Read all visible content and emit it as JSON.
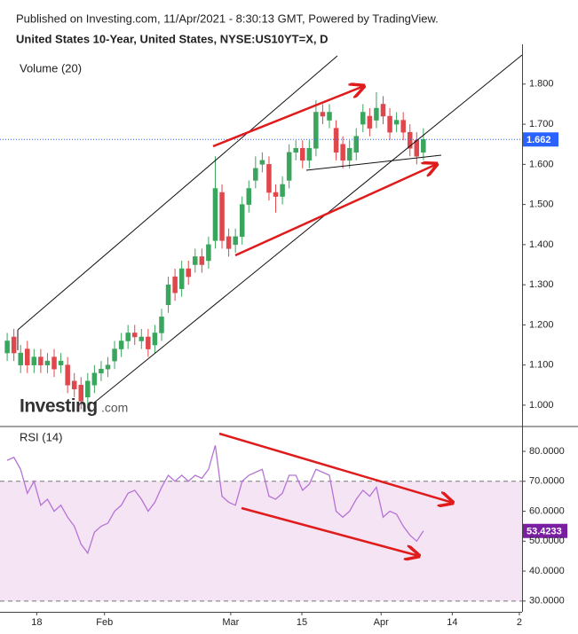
{
  "chart_data": [
    {
      "type": "candlestick",
      "subtitle": "Published on Investing.com, 11/Apr/2021 - 8:30:13 GMT, Powered by TradingView.",
      "title": "United States 10-Year, United States, NYSE:US10YT=X, D",
      "label": "Volume (20)",
      "watermark": "Investing",
      "watermark_suffix": ".com",
      "up_color": "#3aa55c",
      "down_color": "#e0474c",
      "last_color": "#2962ff",
      "xlim": [
        -1.07,
        76.7
      ],
      "ylim": [
        0.949,
        1.888
      ],
      "yticks": [
        {
          "value": 1.0,
          "label": "1.000"
        },
        {
          "value": 1.1,
          "label": "1.100"
        },
        {
          "value": 1.2,
          "label": "1.200"
        },
        {
          "value": 1.3,
          "label": "1.300"
        },
        {
          "value": 1.4,
          "label": "1.400"
        },
        {
          "value": 1.5,
          "label": "1.500"
        },
        {
          "value": 1.6,
          "label": "1.600"
        },
        {
          "value": 1.7,
          "label": "1.700"
        },
        {
          "value": 1.8,
          "label": "1.800"
        }
      ],
      "open": [
        1.13,
        1.17,
        1.1,
        1.14,
        1.1,
        1.12,
        1.1,
        1.12,
        1.1,
        1.1,
        1.06,
        1.05,
        1.02,
        1.05,
        1.08,
        1.09,
        1.11,
        1.14,
        1.16,
        1.18,
        1.16,
        1.17,
        1.15,
        1.18,
        1.25,
        1.32,
        1.29,
        1.34,
        1.35,
        1.37,
        1.36,
        1.41,
        1.53,
        1.42,
        1.4,
        1.42,
        1.5,
        1.56,
        1.6,
        1.6,
        1.53,
        1.52,
        1.56,
        1.63,
        1.64,
        1.61,
        1.64,
        1.73,
        1.71,
        1.69,
        1.65,
        1.61,
        1.63,
        1.7,
        1.72,
        1.71,
        1.75,
        1.72,
        1.7,
        1.71,
        1.68,
        1.66,
        1.63
      ],
      "high": [
        1.18,
        1.19,
        1.15,
        1.16,
        1.14,
        1.14,
        1.13,
        1.14,
        1.13,
        1.12,
        1.08,
        1.07,
        1.08,
        1.1,
        1.11,
        1.12,
        1.16,
        1.18,
        1.2,
        1.2,
        1.19,
        1.19,
        1.2,
        1.24,
        1.32,
        1.34,
        1.36,
        1.36,
        1.39,
        1.39,
        1.42,
        1.62,
        1.55,
        1.44,
        1.44,
        1.52,
        1.56,
        1.62,
        1.63,
        1.62,
        1.55,
        1.57,
        1.65,
        1.66,
        1.66,
        1.66,
        1.76,
        1.75,
        1.75,
        1.71,
        1.67,
        1.66,
        1.69,
        1.75,
        1.74,
        1.78,
        1.77,
        1.74,
        1.73,
        1.73,
        1.7,
        1.68,
        1.69
      ],
      "low": [
        1.11,
        1.11,
        1.08,
        1.08,
        1.08,
        1.08,
        1.08,
        1.07,
        1.08,
        1.03,
        1.02,
        0.99,
        1.0,
        1.03,
        1.06,
        1.07,
        1.09,
        1.12,
        1.14,
        1.15,
        1.14,
        1.12,
        1.13,
        1.16,
        1.23,
        1.26,
        1.27,
        1.3,
        1.33,
        1.33,
        1.34,
        1.39,
        1.39,
        1.37,
        1.38,
        1.4,
        1.48,
        1.54,
        1.58,
        1.51,
        1.48,
        1.5,
        1.54,
        1.61,
        1.59,
        1.59,
        1.62,
        1.7,
        1.69,
        1.61,
        1.59,
        1.59,
        1.61,
        1.68,
        1.67,
        1.69,
        1.7,
        1.66,
        1.68,
        1.66,
        1.62,
        1.6,
        1.61
      ],
      "close": [
        1.16,
        1.13,
        1.13,
        1.1,
        1.12,
        1.1,
        1.11,
        1.09,
        1.11,
        1.05,
        1.04,
        1.01,
        1.06,
        1.08,
        1.09,
        1.1,
        1.14,
        1.16,
        1.18,
        1.17,
        1.17,
        1.14,
        1.18,
        1.22,
        1.3,
        1.28,
        1.34,
        1.32,
        1.37,
        1.35,
        1.4,
        1.54,
        1.41,
        1.39,
        1.42,
        1.5,
        1.54,
        1.59,
        1.61,
        1.53,
        1.52,
        1.55,
        1.63,
        1.64,
        1.61,
        1.64,
        1.73,
        1.72,
        1.73,
        1.63,
        1.61,
        1.64,
        1.67,
        1.73,
        1.69,
        1.74,
        1.72,
        1.68,
        1.71,
        1.68,
        1.64,
        1.62,
        1.662
      ]
    },
    {
      "type": "line",
      "title": "RSI (14)",
      "color": "#b673d6",
      "band_color": "#f4e4f4",
      "last_color": "#7b1fa2",
      "band": [
        30,
        70
      ],
      "xlim": [
        -1.07,
        76.7
      ],
      "ylim": [
        26.4,
        87.7
      ],
      "yticks": [
        {
          "value": 30,
          "label": "30.0000"
        },
        {
          "value": 40,
          "label": "40.0000"
        },
        {
          "value": 50,
          "label": "50.0000"
        },
        {
          "value": 60,
          "label": "60.0000"
        },
        {
          "value": 70,
          "label": "70.0000"
        },
        {
          "value": 80,
          "label": "80.0000"
        }
      ],
      "xticks": [
        {
          "value": 4.4,
          "label": "18"
        },
        {
          "value": 14.5,
          "label": "Feb"
        },
        {
          "value": 33.3,
          "label": "Mar"
        },
        {
          "value": 43.9,
          "label": "15"
        },
        {
          "value": 55.7,
          "label": "Apr"
        },
        {
          "value": 66.3,
          "label": "14"
        },
        {
          "value": 76.3,
          "label": "2"
        }
      ],
      "values": [
        77,
        78,
        74,
        66,
        70,
        62,
        64,
        60,
        62,
        58,
        55,
        49,
        46,
        53,
        55,
        56,
        60,
        62,
        66,
        67,
        64,
        60,
        63,
        68,
        72,
        70,
        72,
        70,
        72,
        71,
        74,
        82,
        65,
        63,
        62,
        70,
        72,
        73,
        74,
        65,
        64,
        66,
        72,
        72,
        67,
        69,
        74,
        73,
        72,
        60,
        58,
        60,
        64,
        67,
        65,
        68,
        58,
        60,
        59,
        55,
        52,
        50,
        53.4233
      ]
    }
  ]
}
